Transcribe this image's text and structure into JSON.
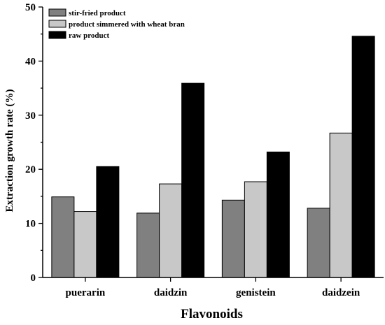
{
  "chart_data": {
    "type": "bar",
    "categories": [
      "puerarin",
      "daidzin",
      "genistein",
      "daidzein"
    ],
    "series": [
      {
        "name": "stir-fried product",
        "values": [
          14.9,
          11.9,
          14.3,
          12.8
        ],
        "color": "#808080"
      },
      {
        "name": "product simmered with wheat bran",
        "values": [
          12.2,
          17.3,
          17.7,
          26.7
        ],
        "color": "#c8c8c8"
      },
      {
        "name": "raw product",
        "values": [
          20.5,
          35.9,
          23.2,
          44.6
        ],
        "color": "#000000"
      }
    ],
    "xlabel": "Flavonoids",
    "ylabel": "Extraction growth rate (%)",
    "ylim": [
      0,
      50
    ],
    "yticks": [
      "0",
      "10",
      "20",
      "30",
      "40",
      "50"
    ],
    "grid": false,
    "legend_position": "top-left"
  }
}
